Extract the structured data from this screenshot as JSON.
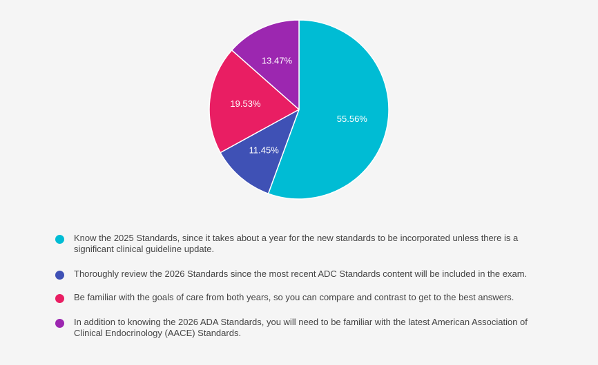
{
  "chart_data": {
    "type": "pie",
    "title": "",
    "slices": [
      {
        "label": "Know the 2025 Standards, since it takes about a year for the new standards to be incorporated unless there is a significant clinical guideline update.",
        "value": 55.56,
        "display": "55.56%",
        "color": "#00BCD4"
      },
      {
        "label": "Thoroughly review the 2026 Standards since the most recent ADC Standards content will be included in the exam.",
        "value": 11.45,
        "display": "11.45%",
        "color": "#3F51B5"
      },
      {
        "label": "Be familiar with the goals of care from both years, so you can compare and contrast to get to the best answers.",
        "value": 19.53,
        "display": "19.53%",
        "color": "#E91E63"
      },
      {
        "label": "In addition to knowing the 2026 ADA Standards, you will need to be familiar with the latest American Association of Clinical Endocrinology (AACE) Standards.",
        "value": 13.47,
        "display": "13.47%",
        "color": "#9C27B0"
      }
    ],
    "start": "top",
    "direction": "clockwise",
    "legend_position": "bottom",
    "slice_border_color": "#ffffff"
  }
}
